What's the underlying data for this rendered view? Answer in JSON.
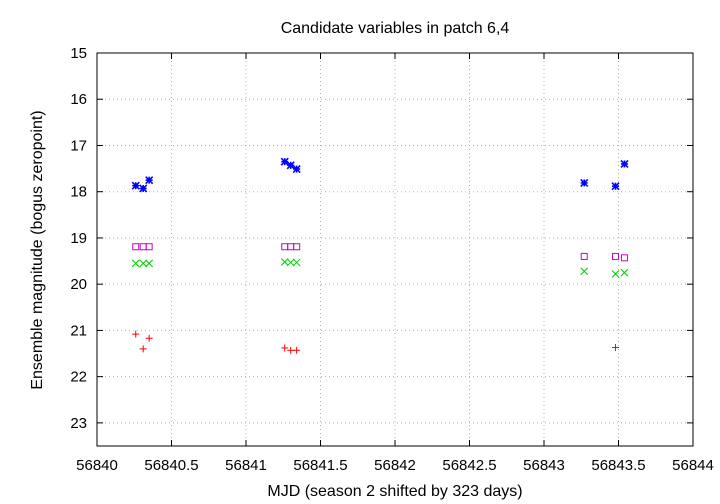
{
  "chart_data": {
    "type": "scatter",
    "title": "Candidate variables in patch 6,4",
    "xlabel": "MJD (season 2 shifted by 323 days)",
    "ylabel": "Ensemble magnitude (bogus zeropoint)",
    "xlim": [
      56840,
      56844
    ],
    "ylim": [
      15,
      23.5
    ],
    "y_inverted": true,
    "grid": true,
    "legend": "none",
    "x_ticks": [
      56840,
      56840.5,
      56841,
      56841.5,
      56842,
      56842.5,
      56843,
      56843.5,
      56844
    ],
    "y_ticks": [
      15,
      16,
      17,
      18,
      19,
      20,
      21,
      22,
      23
    ],
    "series": [
      {
        "marker": "asterisk",
        "color": "#0000ff",
        "points": [
          [
            56840.26,
            17.87
          ],
          [
            56840.31,
            17.93
          ],
          [
            56840.35,
            17.75
          ],
          [
            56841.26,
            17.35
          ],
          [
            56841.3,
            17.43
          ],
          [
            56841.34,
            17.51
          ],
          [
            56843.27,
            17.81
          ],
          [
            56843.48,
            17.88
          ],
          [
            56843.54,
            17.4
          ]
        ]
      },
      {
        "marker": "square",
        "color": "#cc00cc",
        "points": [
          [
            56840.26,
            19.19
          ],
          [
            56840.31,
            19.19
          ],
          [
            56840.35,
            19.19
          ],
          [
            56841.26,
            19.19
          ],
          [
            56841.3,
            19.19
          ],
          [
            56841.34,
            19.19
          ],
          [
            56843.27,
            19.4
          ],
          [
            56843.48,
            19.4
          ],
          [
            56843.54,
            19.43
          ]
        ]
      },
      {
        "marker": "x",
        "color": "#00cc00",
        "points": [
          [
            56840.26,
            19.55
          ],
          [
            56840.31,
            19.55
          ],
          [
            56840.35,
            19.55
          ],
          [
            56841.26,
            19.52
          ],
          [
            56841.3,
            19.53
          ],
          [
            56841.34,
            19.53
          ],
          [
            56843.27,
            19.72
          ],
          [
            56843.48,
            19.78
          ],
          [
            56843.54,
            19.75
          ]
        ]
      },
      {
        "marker": "plus",
        "color": "#ff0000",
        "points": [
          [
            56840.26,
            21.08
          ],
          [
            56840.31,
            21.4
          ],
          [
            56840.35,
            21.17
          ],
          [
            56841.26,
            21.38
          ],
          [
            56841.3,
            21.43
          ],
          [
            56841.34,
            21.43
          ],
          [
            56843.48,
            21.37
          ]
        ]
      }
    ]
  }
}
